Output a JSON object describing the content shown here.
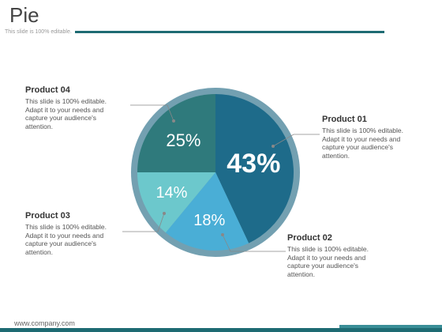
{
  "header": {
    "title": "Pie",
    "subtitle": "This slide is 100% editable."
  },
  "footer": {
    "url": "www.company.com"
  },
  "chart_data": {
    "type": "pie",
    "title": "",
    "slices": [
      {
        "label": "Product 01",
        "value": 43,
        "display": "43%",
        "color": "#1e6b8a"
      },
      {
        "label": "Product 02",
        "value": 18,
        "display": "18%",
        "color": "#4aaed6"
      },
      {
        "label": "Product 03",
        "value": 14,
        "display": "14%",
        "color": "#6cc8cc"
      },
      {
        "label": "Product 04",
        "value": 25,
        "display": "25%",
        "color": "#2f7a7c"
      }
    ],
    "ring_color": "#5b8fa3"
  },
  "legend": [
    {
      "name": "Product 01",
      "desc": "This slide is 100% editable. Adapt it to your needs and capture your audience's attention."
    },
    {
      "name": "Product 02",
      "desc": "This slide is 100% editable. Adapt it to your needs and capture your audience's attention."
    },
    {
      "name": "Product 03",
      "desc": "This slide is 100% editable. Adapt it to your needs and capture your audience's attention."
    },
    {
      "name": "Product 04",
      "desc": "This slide is 100% editable. Adapt it to your needs and capture your audience's attention."
    }
  ]
}
